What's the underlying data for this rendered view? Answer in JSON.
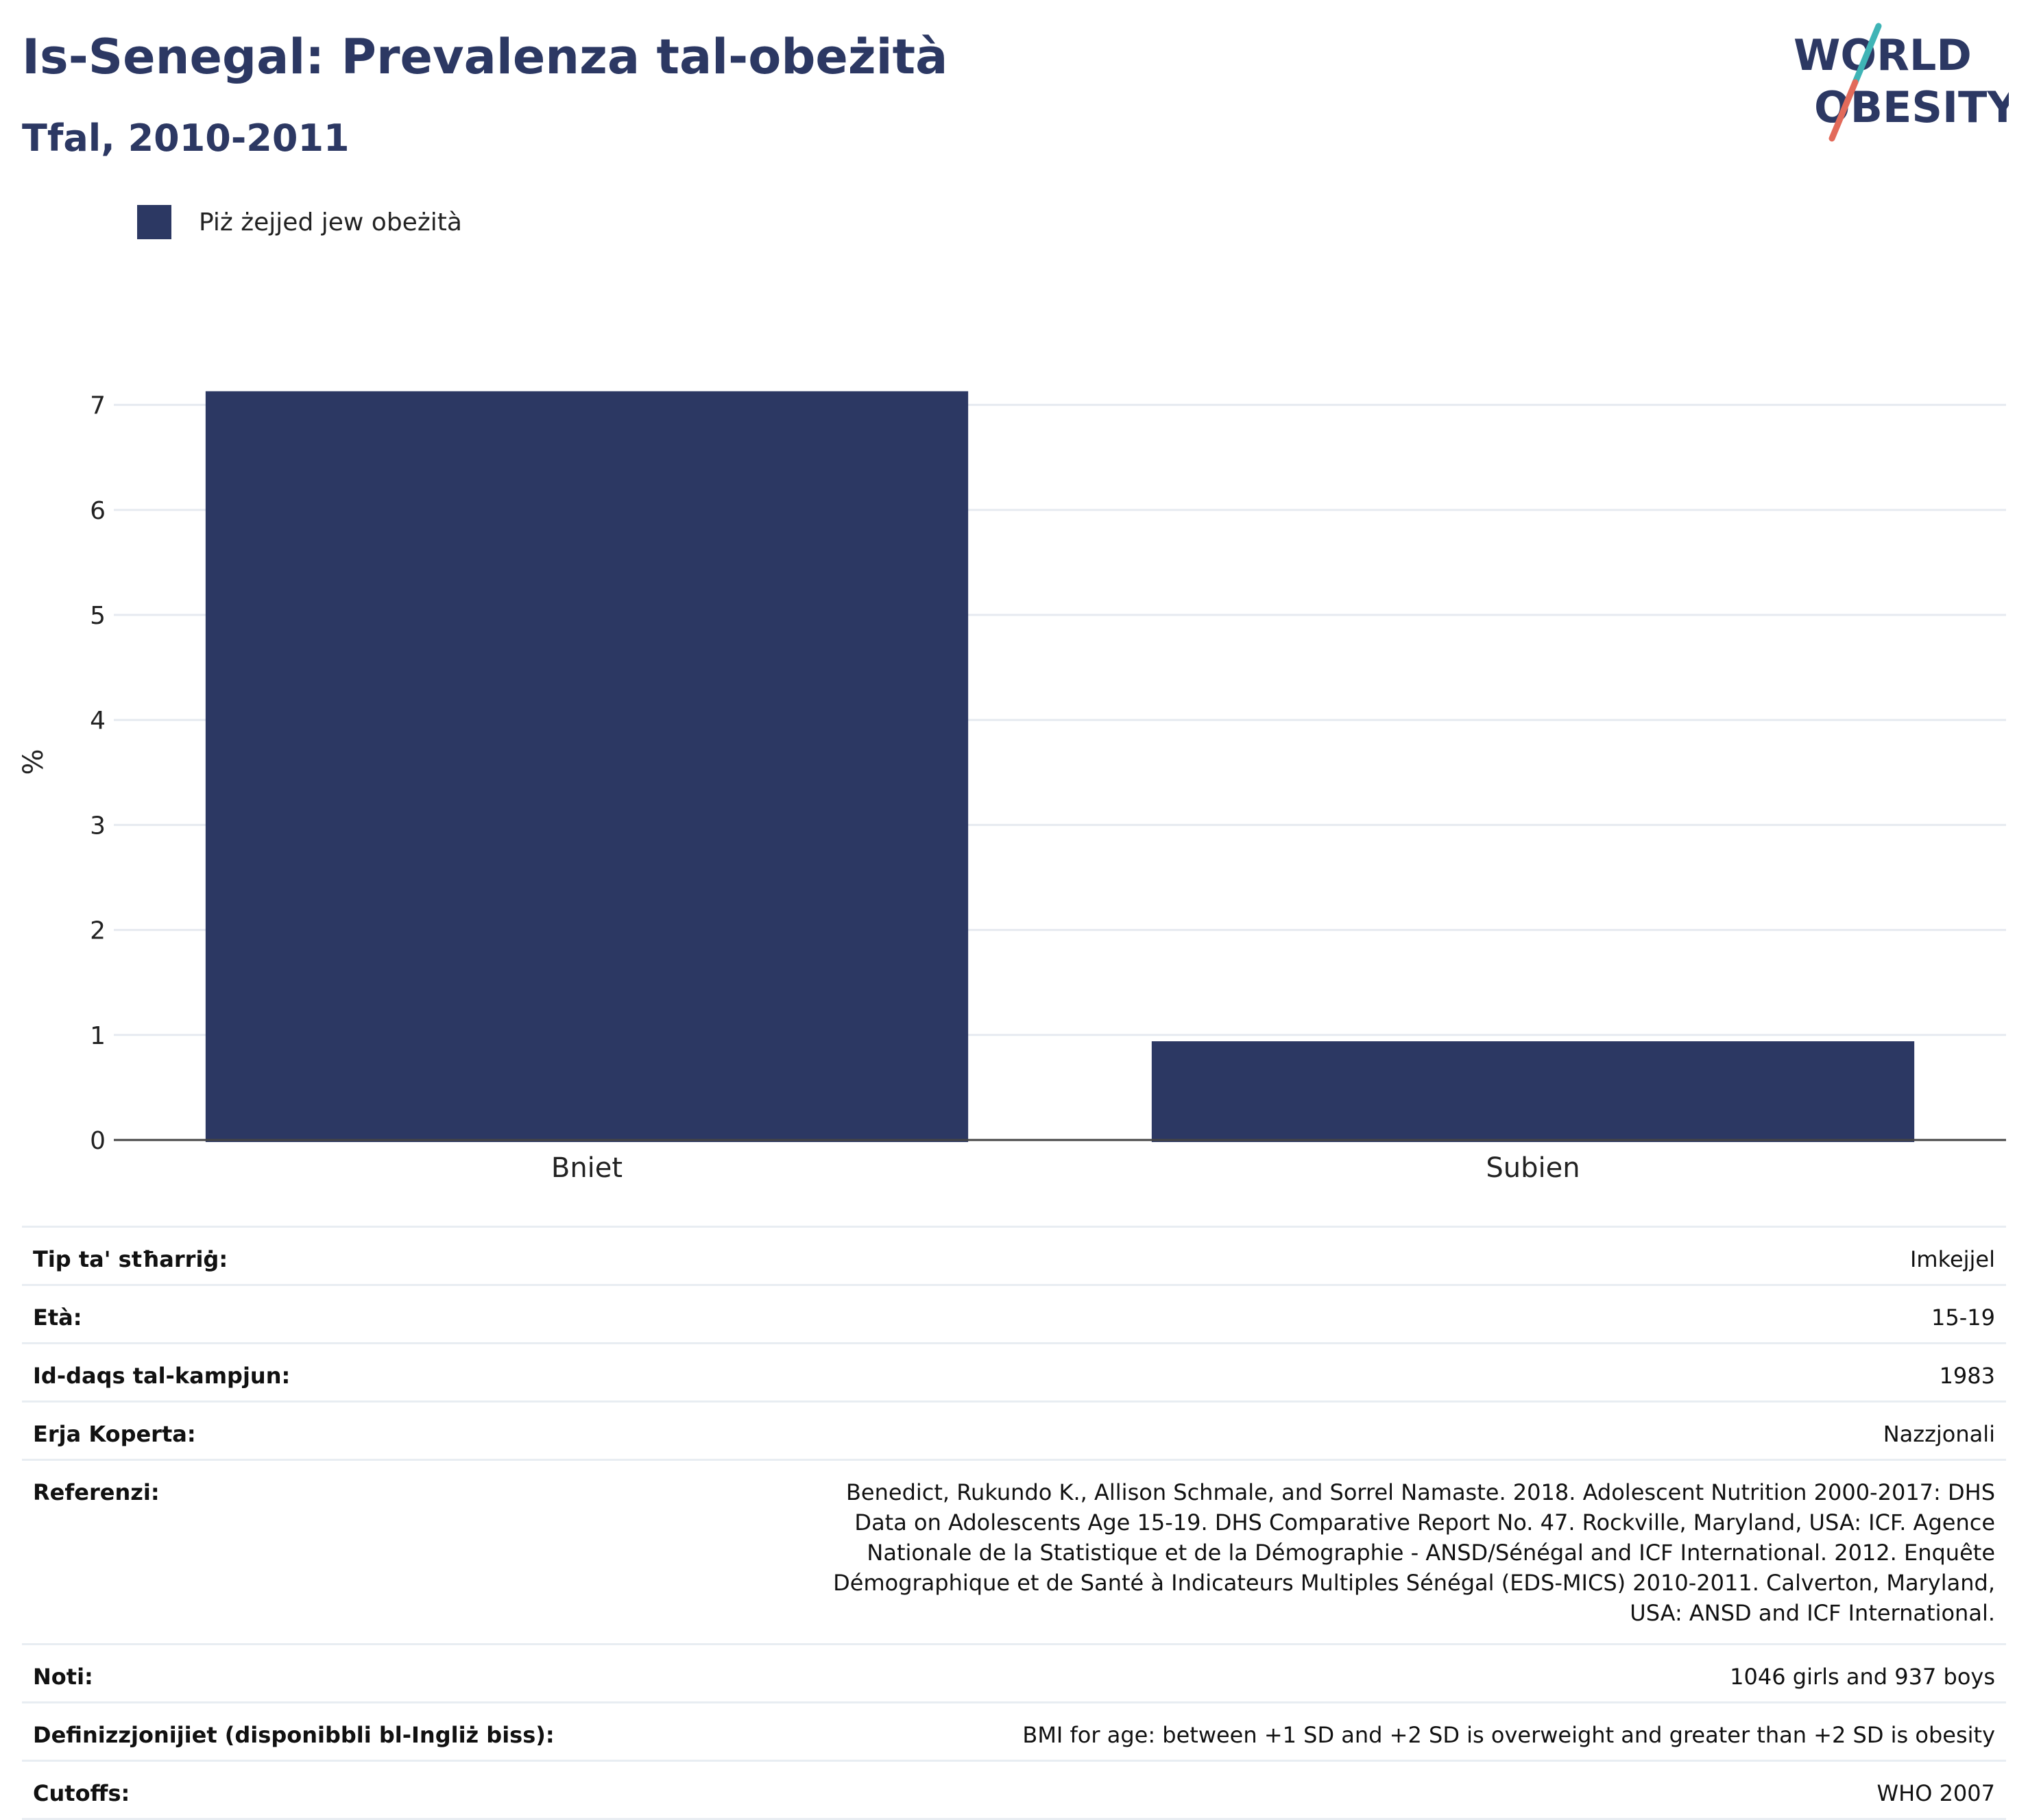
{
  "header": {
    "title": "Is-Senegal: Prevalenza tal-obeżità",
    "subtitle": "Tfal, 2010-2011"
  },
  "logo": {
    "line1": "WORLD",
    "line2": "OBESITY",
    "colors": {
      "text": "#2c3863",
      "slash_top": "#3fb4b6",
      "slash_bottom": "#e26a5a"
    }
  },
  "legend": {
    "label": "Piż żejjed jew obeżità",
    "color": "#2c3863"
  },
  "chart_data": {
    "type": "bar",
    "categories": [
      "Bniet",
      "Subien"
    ],
    "series": [
      {
        "name": "Piż żejjed jew obeżità",
        "values": [
          7.13,
          0.94
        ],
        "color": "#2c3863"
      }
    ],
    "ylabel": "%",
    "ylim": [
      0,
      7.2
    ],
    "yticks": [
      0,
      1,
      2,
      3,
      4,
      5,
      6,
      7
    ],
    "grid": true,
    "legend_position": "top-left"
  },
  "metadata": {
    "rows": [
      {
        "key": "Tip ta' stħarriġ:",
        "value": "Imkejjel"
      },
      {
        "key": "Età:",
        "value": "15-19"
      },
      {
        "key": "Id-daqs tal-kampjun:",
        "value": "1983"
      },
      {
        "key": "Erja Koperta:",
        "value": "Nazzjonali"
      },
      {
        "key": "Referenzi:",
        "value": "Benedict, Rukundo K., Allison Schmale, and Sorrel Namaste. 2018. Adolescent Nutrition 2000-2017: DHS Data on Adolescents Age 15-19. DHS Comparative Report No. 47. Rockville, Maryland, USA: ICF. Agence Nationale de la Statistique et de la Démographie - ANSD/Sénégal and ICF International. 2012. Enquête Démographique et de Santé à Indicateurs Multiples Sénégal (EDS-MICS) 2010-2011. Calverton, Maryland, USA: ANSD and ICF International."
      },
      {
        "key": "Noti:",
        "value": "1046 girls and 937 boys"
      },
      {
        "key": "Definizzjonijiet (disponibbli bl-Ingliż biss):",
        "value": "BMI for age: between +1 SD and +2 SD is overweight and greater than +2 SD is obesity"
      },
      {
        "key": "Cutoffs:",
        "value": "WHO 2007"
      }
    ]
  }
}
